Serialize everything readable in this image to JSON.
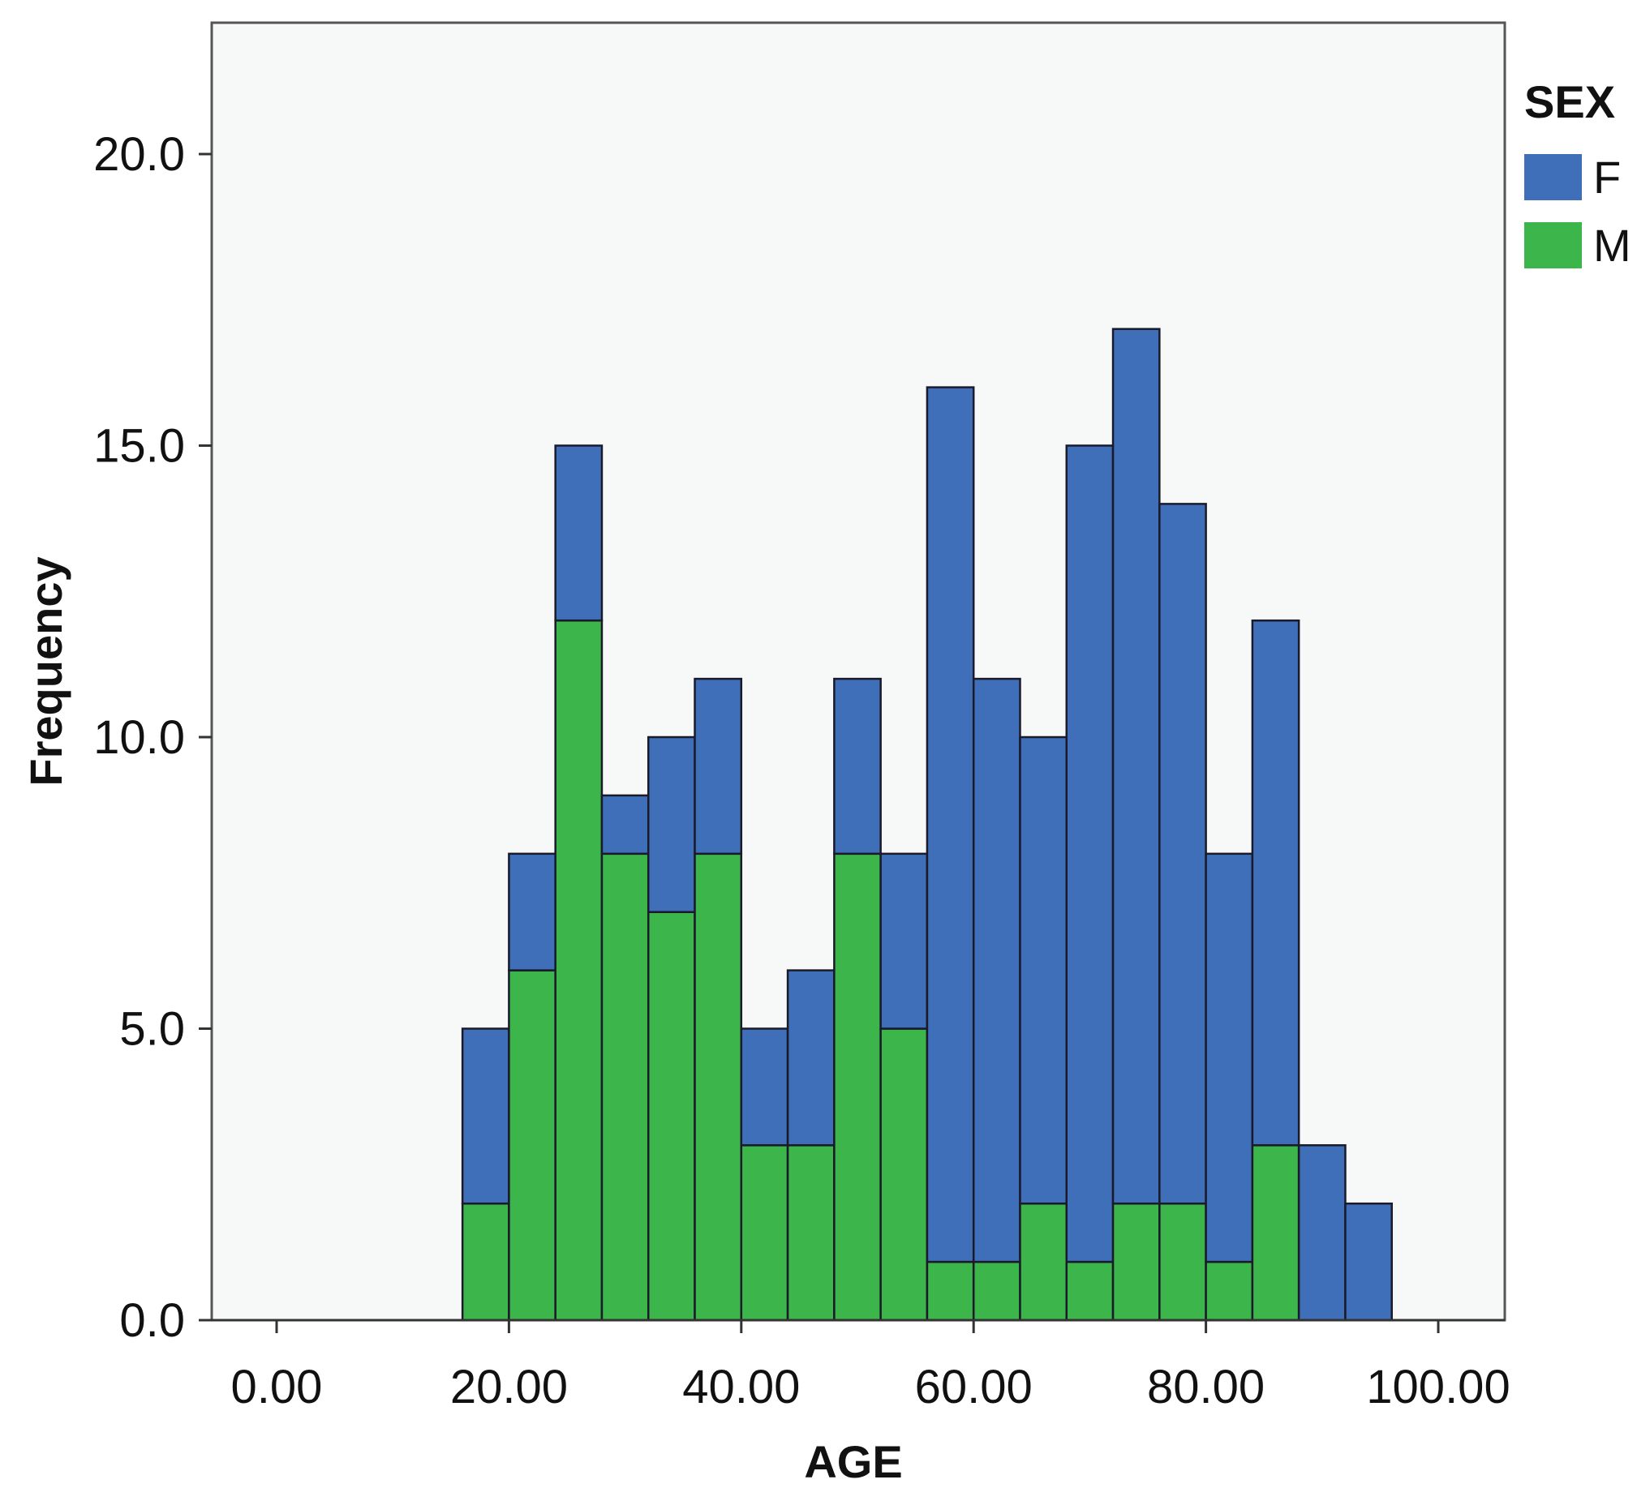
{
  "chart_data": {
    "type": "bar",
    "subtype": "stacked-histogram",
    "title": "",
    "xlabel": "AGE",
    "ylabel": "Frequency",
    "xlim": [
      -4,
      103
    ],
    "ylim": [
      0,
      22
    ],
    "bin_width": 4,
    "bin_starts": [
      16,
      20,
      24,
      28,
      32,
      36,
      40,
      44,
      48,
      52,
      56,
      60,
      64,
      68,
      72,
      76,
      80,
      84,
      88,
      92
    ],
    "series": [
      {
        "name": "M",
        "color": "#3cb54a",
        "values": [
          2,
          6,
          12,
          8,
          7,
          8,
          3,
          3,
          8,
          5,
          1,
          1,
          2,
          1,
          2,
          2,
          1,
          3,
          0,
          0
        ]
      },
      {
        "name": "F",
        "color": "#3f6fb8",
        "values": [
          3,
          2,
          3,
          1,
          3,
          3,
          2,
          3,
          3,
          3,
          15,
          10,
          8,
          14,
          15,
          12,
          7,
          9,
          3,
          2
        ]
      }
    ],
    "x_ticks": [
      0,
      20,
      40,
      60,
      80,
      100
    ],
    "x_tick_labels": [
      "0.00",
      "20.00",
      "40.00",
      "60.00",
      "80.00",
      "100.00"
    ],
    "y_ticks": [
      0,
      5,
      10,
      15,
      20
    ],
    "y_tick_labels": [
      "0.0",
      "5.0",
      "10.0",
      "15.0",
      "20.0"
    ],
    "legend": {
      "title": "SEX",
      "entries": [
        "F",
        "M"
      ],
      "placement": "right"
    },
    "grid": false
  }
}
